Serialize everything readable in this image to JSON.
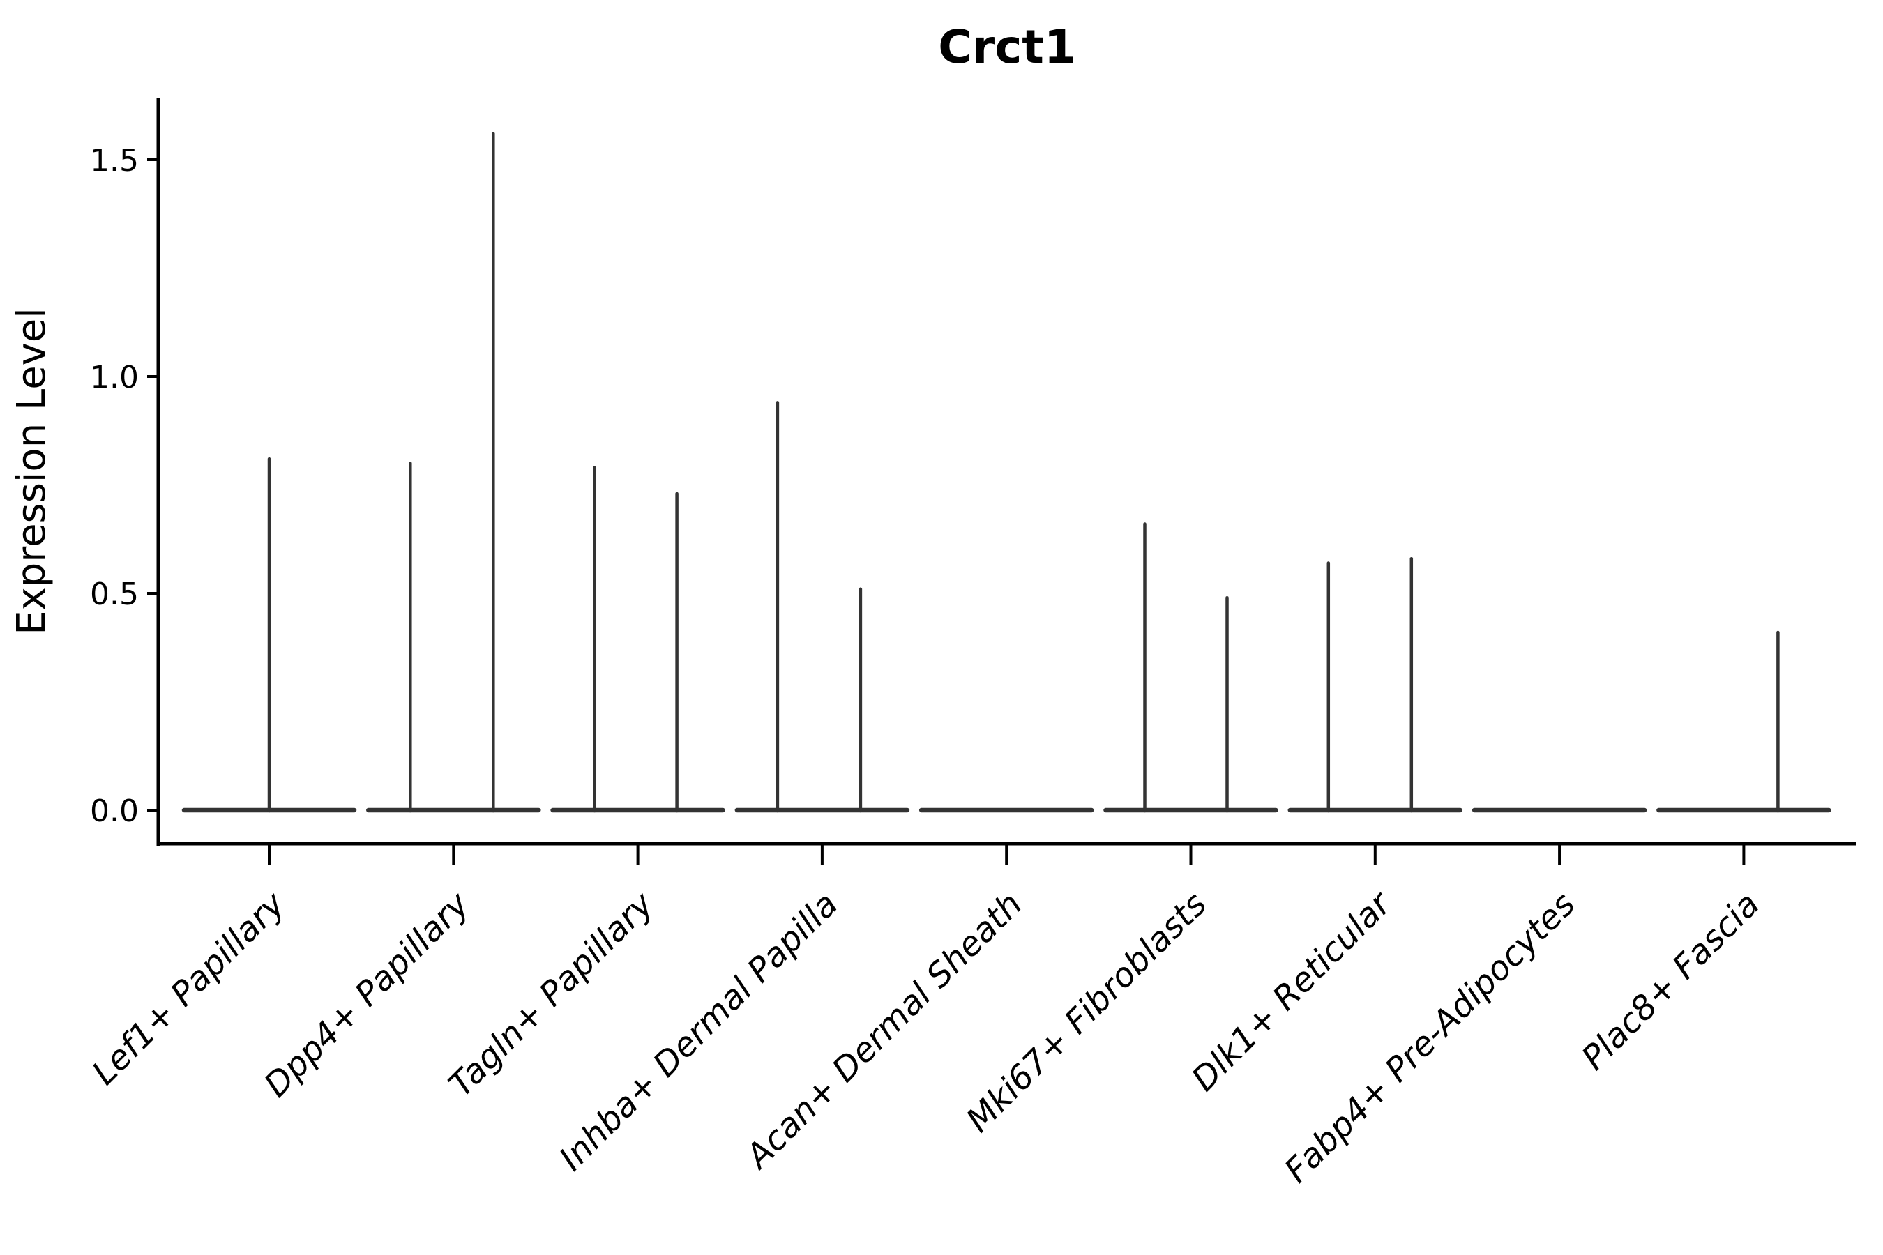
{
  "title": "Crct1",
  "y_axis": {
    "label": "Expression Level",
    "tick_labels": [
      "0.0",
      "0.5",
      "1.0",
      "1.5"
    ],
    "tick_values": [
      0.0,
      0.5,
      1.0,
      1.5
    ]
  },
  "x_axis": {
    "tick_labels": [
      "Lef1+ Papillary",
      "Dpp4+ Papillary",
      "Tagln+ Papillary",
      "Inhba+ Dermal Papilla",
      "Acan+ Dermal Sheath",
      "Mki67+ Fibroblasts",
      "Dlk1+ Reticular",
      "Fabp4+ Pre-Adipocytes",
      "Plac8+ Fascia"
    ]
  },
  "chart_data": {
    "type": "violin",
    "title": "Crct1",
    "xlabel": "",
    "ylabel": "Expression Level",
    "ylim": [
      0,
      1.6
    ],
    "yticks": [
      0.0,
      0.5,
      1.0,
      1.5
    ],
    "grid": false,
    "legend": "none",
    "description": "Collapsed violin plot of gene expression; each cell type shows a flat zero-expression base with up to two thin density spikes (left/right sub-violin) rising to the maximum expression level.",
    "categories": [
      "Lef1+ Papillary",
      "Dpp4+ Papillary",
      "Tagln+ Papillary",
      "Inhba+ Dermal Papilla",
      "Acan+ Dermal Sheath",
      "Mki67+ Fibroblasts",
      "Dlk1+ Reticular",
      "Fabp4+ Pre-Adipocytes",
      "Plac8+ Fascia"
    ],
    "violins": [
      {
        "category": "Lef1+ Papillary",
        "baseline_value": 0,
        "spikes": [
          {
            "offset": 0,
            "value": 0.81
          }
        ]
      },
      {
        "category": "Dpp4+ Papillary",
        "baseline_value": 0,
        "spikes": [
          {
            "offset": -62,
            "value": 0.8
          },
          {
            "offset": 57,
            "value": 1.56
          }
        ]
      },
      {
        "category": "Tagln+ Papillary",
        "baseline_value": 0,
        "spikes": [
          {
            "offset": -62,
            "value": 0.79
          },
          {
            "offset": 56,
            "value": 0.73
          }
        ]
      },
      {
        "category": "Inhba+ Dermal Papilla",
        "baseline_value": 0,
        "spikes": [
          {
            "offset": -64,
            "value": 0.94
          },
          {
            "offset": 55,
            "value": 0.51
          }
        ]
      },
      {
        "category": "Acan+ Dermal Sheath",
        "baseline_value": 0,
        "spikes": []
      },
      {
        "category": "Mki67+ Fibroblasts",
        "baseline_value": 0,
        "spikes": [
          {
            "offset": -66,
            "value": 0.66
          },
          {
            "offset": 52,
            "value": 0.49
          }
        ]
      },
      {
        "category": "Dlk1+ Reticular",
        "baseline_value": 0,
        "spikes": [
          {
            "offset": -67,
            "value": 0.57
          },
          {
            "offset": 52,
            "value": 0.58
          }
        ]
      },
      {
        "category": "Fabp4+ Pre-Adipocytes",
        "baseline_value": 0,
        "spikes": []
      },
      {
        "category": "Plac8+ Fascia",
        "baseline_value": 0,
        "spikes": [
          {
            "offset": 49,
            "value": 0.41
          }
        ]
      }
    ],
    "colors": {
      "violin_line": "#333333",
      "axis_line": "#000000",
      "text": "#000000",
      "background": "#ffffff"
    }
  }
}
